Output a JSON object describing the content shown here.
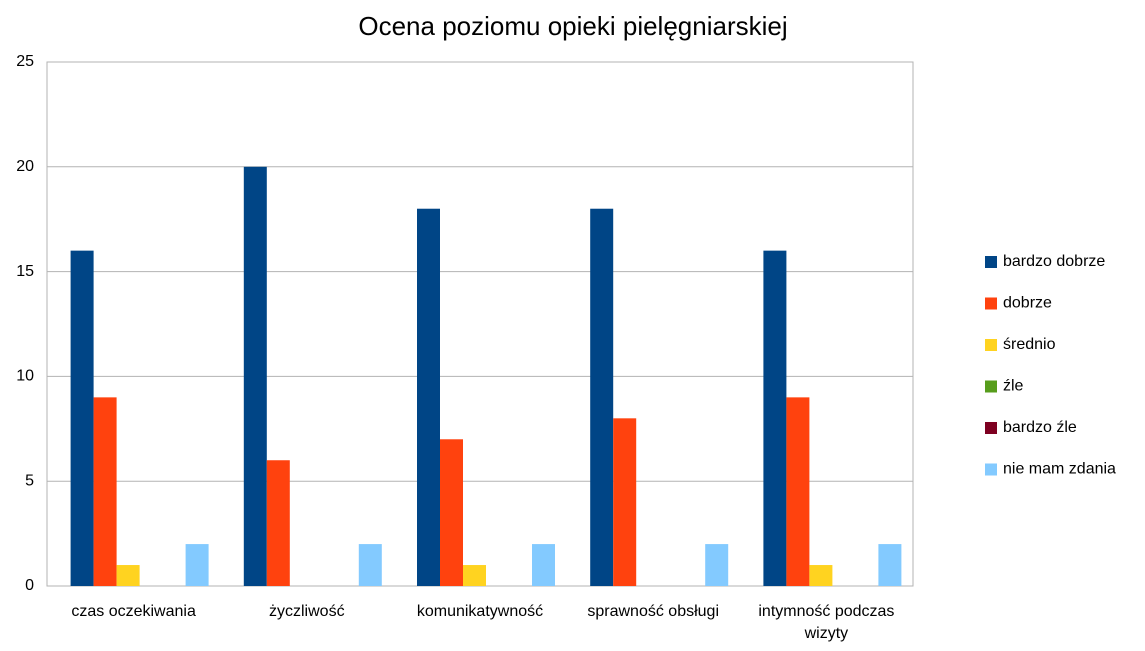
{
  "chart_data": {
    "type": "bar",
    "title": "Ocena poziomu opieki pielęgniarskiej",
    "categories": [
      "czas oczekiwania",
      "życzliwość",
      "komunikatywność",
      "sprawność obsługi",
      "intymność podczas wizyty"
    ],
    "series": [
      {
        "name": "bardzo dobrze",
        "color": "#004586",
        "values": [
          16,
          20,
          18,
          18,
          16
        ]
      },
      {
        "name": "dobrze",
        "color": "#ff420e",
        "values": [
          9,
          6,
          7,
          8,
          9
        ]
      },
      {
        "name": "średnio",
        "color": "#ffd320",
        "values": [
          1,
          0,
          1,
          0,
          1
        ]
      },
      {
        "name": "źle",
        "color": "#579d1c",
        "values": [
          0,
          0,
          0,
          0,
          0
        ]
      },
      {
        "name": "bardzo źle",
        "color": "#7e0021",
        "values": [
          0,
          0,
          0,
          0,
          0
        ]
      },
      {
        "name": "nie mam zdania",
        "color": "#83caff",
        "values": [
          2,
          2,
          2,
          2,
          2
        ]
      }
    ],
    "ylim": [
      0,
      25
    ],
    "yticks": [
      0,
      5,
      10,
      15,
      20,
      25
    ],
    "grid": true,
    "legend": "right"
  }
}
